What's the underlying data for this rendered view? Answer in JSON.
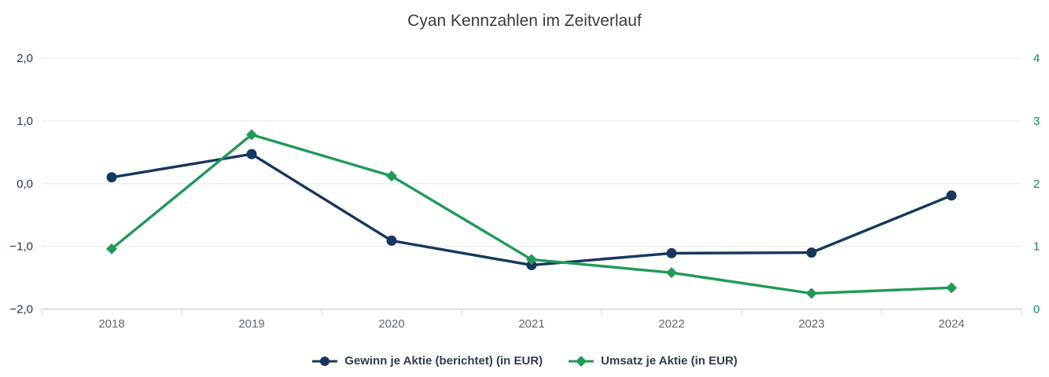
{
  "chart_data": {
    "type": "line",
    "title": "Cyan Kennzahlen im Zeitverlauf",
    "title_color": "#3c3c3c",
    "legend_text_color": "#2e3d51",
    "legend_position": "bottom",
    "grid": true,
    "categories": [
      "2018",
      "2019",
      "2020",
      "2021",
      "2022",
      "2023",
      "2024"
    ],
    "series": [
      {
        "name": "Gewinn je Aktie (berichtet) (in EUR)",
        "axis": "left",
        "color": "#17375e",
        "marker": "circle",
        "values": [
          0.1,
          0.47,
          -0.91,
          -1.3,
          -1.11,
          -1.1,
          -0.19
        ]
      },
      {
        "name": "Umsatz je Aktie (in EUR)",
        "axis": "right",
        "color": "#219a58",
        "marker": "diamond",
        "values": [
          0.96,
          2.78,
          2.12,
          0.79,
          0.58,
          0.25,
          0.34
        ]
      }
    ],
    "left_axis": {
      "min": -2,
      "max": 2,
      "tick_values": [
        2,
        1,
        0,
        -1,
        -2
      ],
      "tick_labels": [
        "2,0",
        "1,0",
        "0,0",
        "−1,0",
        "−2,0"
      ],
      "label_color": "#17375e"
    },
    "right_axis": {
      "min": 0,
      "max": 4,
      "tick_values": [
        4,
        3,
        2,
        1,
        0
      ],
      "tick_labels": [
        "4",
        "3",
        "2",
        "1",
        "0"
      ],
      "label_color": "#0e8a64"
    },
    "x_axis": {
      "label_color": "#62696f",
      "line_color": "#ccd6dd",
      "grid_color": "#e6e6e6"
    }
  }
}
